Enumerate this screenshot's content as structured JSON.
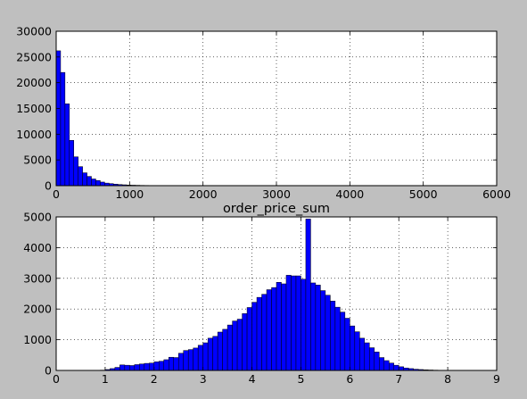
{
  "figure": {
    "background": "#bfbfbf",
    "bar_color": "#0000ff",
    "edge_color": "#000000",
    "plot_background": "#ffffff"
  },
  "chart_data": [
    {
      "type": "bar",
      "title": "",
      "xlabel": "",
      "ylabel": "",
      "xlim": [
        0,
        6000
      ],
      "ylim": [
        0,
        30000
      ],
      "grid": true,
      "xticks": [
        0,
        1000,
        2000,
        3000,
        4000,
        5000,
        6000
      ],
      "yticks": [
        0,
        5000,
        10000,
        15000,
        20000,
        25000,
        30000
      ],
      "bin_width": 60,
      "bin_start": 0,
      "values": [
        26200,
        22000,
        15900,
        8800,
        5600,
        3700,
        2500,
        1800,
        1300,
        1000,
        700,
        500,
        400,
        300,
        220,
        170,
        130,
        100,
        80,
        60,
        50,
        40,
        30,
        25,
        20,
        15,
        12,
        10,
        8,
        6,
        5,
        4,
        3,
        3,
        2,
        2,
        2,
        1,
        1,
        1
      ]
    },
    {
      "type": "bar",
      "title": "order_price_sum",
      "xlabel": "",
      "ylabel": "",
      "xlim": [
        0,
        9
      ],
      "ylim": [
        0,
        5000
      ],
      "grid": true,
      "xticks": [
        0,
        1,
        2,
        3,
        4,
        5,
        6,
        7,
        8,
        9
      ],
      "yticks": [
        0,
        1000,
        2000,
        3000,
        4000,
        5000
      ],
      "bin_width": 0.1,
      "bin_start": 0.9,
      "values": [
        10,
        30,
        60,
        100,
        180,
        170,
        160,
        190,
        210,
        230,
        240,
        280,
        300,
        350,
        430,
        420,
        560,
        650,
        680,
        730,
        820,
        900,
        1050,
        1110,
        1250,
        1340,
        1480,
        1610,
        1670,
        1850,
        2050,
        2220,
        2380,
        2480,
        2630,
        2700,
        2870,
        2820,
        3100,
        3080,
        3080,
        2970,
        4930,
        2850,
        2780,
        2600,
        2450,
        2260,
        2060,
        1900,
        1700,
        1450,
        1260,
        1050,
        900,
        740,
        600,
        420,
        320,
        240,
        170,
        120,
        80,
        60,
        40,
        30,
        20,
        15,
        10,
        5
      ]
    }
  ]
}
